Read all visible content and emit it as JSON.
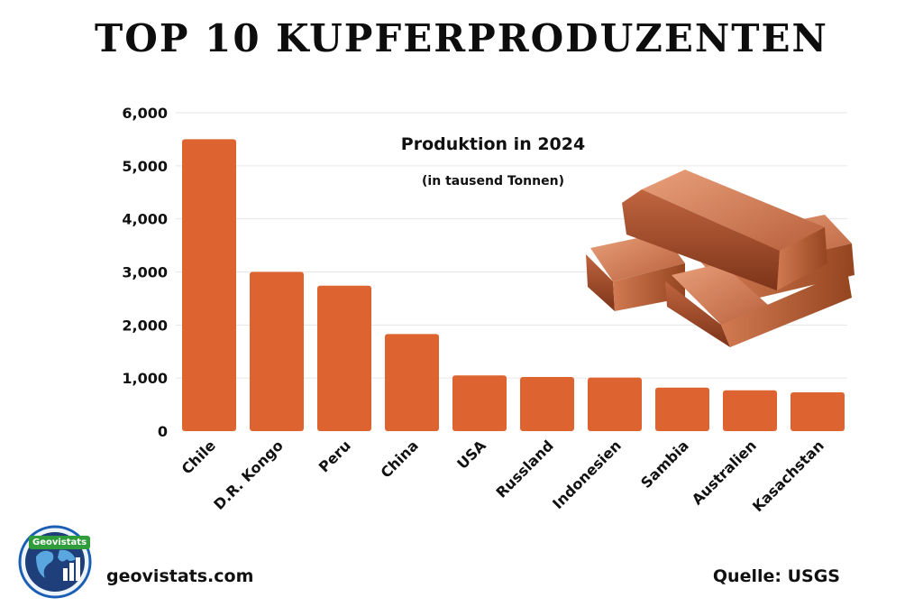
{
  "title": "TOP 10 KUPFERPRODUZENTEN",
  "footer": {
    "site": "geovistats.com",
    "source": "Quelle: USGS",
    "logo_text": "Geovistats"
  },
  "colors": {
    "bar": "#dd6430",
    "grid": "#e6e6e6",
    "text": "#111111",
    "ingot": "#c8704a"
  },
  "icons": {
    "ingot": "copper-ingot-stack-icon",
    "logo": "globe-chart-logo-icon"
  },
  "chart_data": {
    "type": "bar",
    "title": "Produktion in 2024",
    "subtitle": "(in tausend Tonnen)",
    "categories": [
      "Chile",
      "D.R. Kongo",
      "Peru",
      "China",
      "USA",
      "Russland",
      "Indonesien",
      "Sambia",
      "Australien",
      "Kasachstan"
    ],
    "values": [
      5500,
      3000,
      2740,
      1830,
      1050,
      1020,
      1010,
      820,
      770,
      730
    ],
    "ylim": [
      0,
      6000
    ],
    "yticks": [
      "0",
      "1,000",
      "2,000",
      "3,000",
      "4,000",
      "5,000",
      "6,000"
    ],
    "grid": true,
    "legend": "none"
  }
}
